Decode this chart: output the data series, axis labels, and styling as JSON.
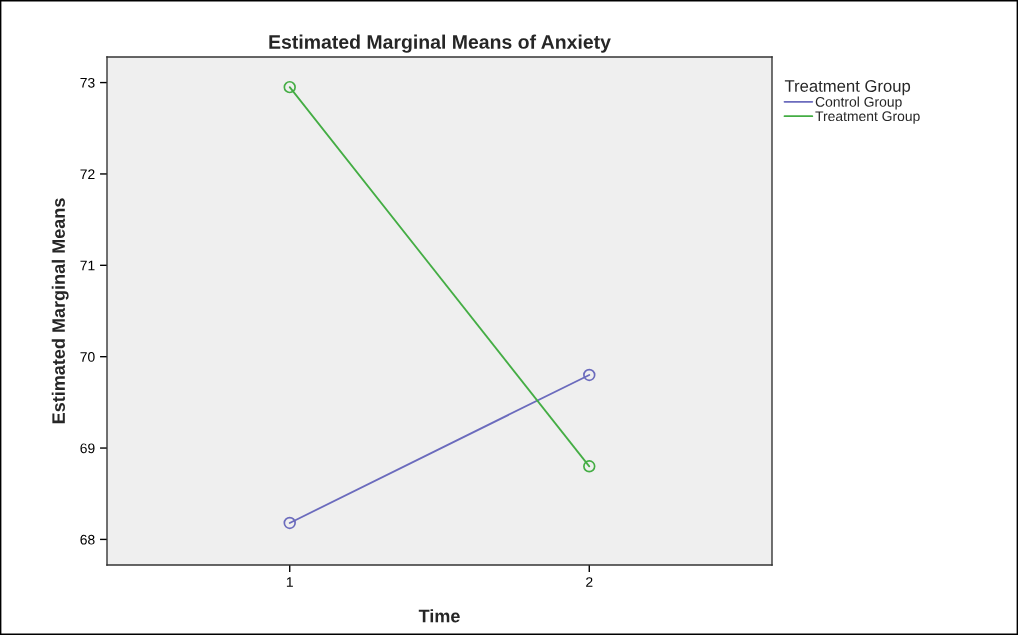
{
  "chart_data": {
    "type": "line",
    "title": "Estimated Marginal Means of Anxiety",
    "xlabel": "Time",
    "ylabel": "Estimated Marginal Means",
    "legend_title": "Treatment Group",
    "x": [
      1,
      2
    ],
    "xlim": [
      0.39,
      2.61
    ],
    "xticks": [
      1,
      2
    ],
    "ylim": [
      67.72,
      73.28
    ],
    "yticks": [
      68,
      69,
      70,
      71,
      72,
      73
    ],
    "series": [
      {
        "name": "Control Group",
        "color": "#6b6bbd",
        "values": [
          68.18,
          69.8
        ]
      },
      {
        "name": "Treatment Group",
        "color": "#44ad44",
        "values": [
          72.95,
          68.8
        ]
      }
    ],
    "marker": "circle",
    "line_style": "solid",
    "grid": false,
    "legend": "top right"
  }
}
